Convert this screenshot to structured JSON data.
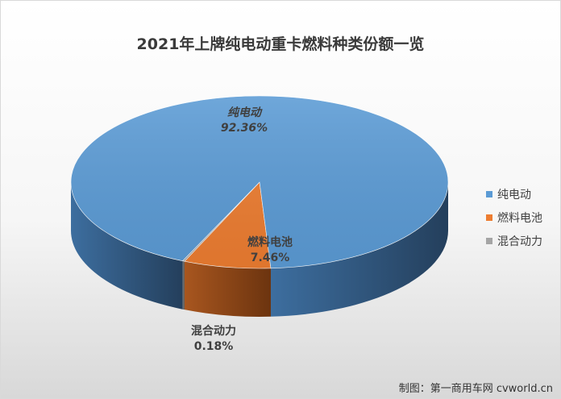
{
  "chart_data": {
    "type": "pie",
    "title": "2021年上牌纯电动重卡燃料种类份额一览",
    "categories": [
      "纯电动",
      "燃料电池",
      "混合动力"
    ],
    "values": [
      92.36,
      7.46,
      0.18
    ],
    "value_labels": [
      "92.36%",
      "7.46%",
      "0.18%"
    ],
    "colors": [
      "#5b9bd5",
      "#ed7d31",
      "#a5a5a5"
    ],
    "legend_placement": "right"
  },
  "source": "制图：第一商用车网 cvworld.cn"
}
